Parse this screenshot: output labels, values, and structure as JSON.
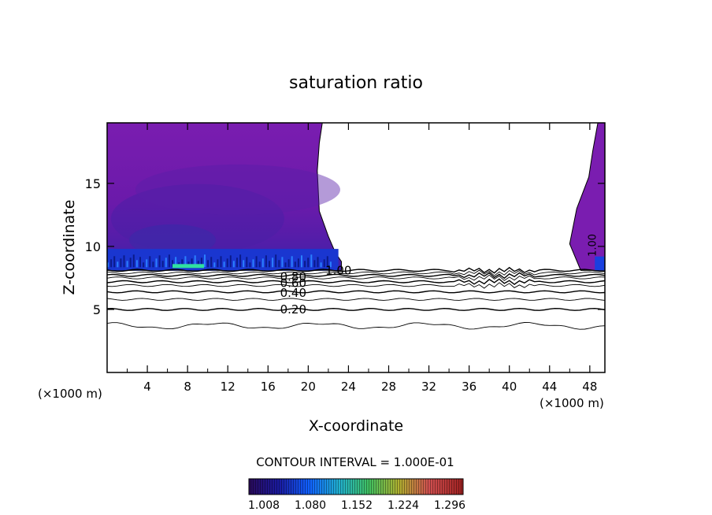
{
  "chart_data": {
    "type": "contour",
    "title": "saturation ratio",
    "xlabel": "X-coordinate",
    "ylabel": "Z-coordinate",
    "x_unit_left": "(×1000 m)",
    "x_unit_right": "(×1000 m)",
    "xlim": [
      0,
      49.5
    ],
    "ylim": [
      0,
      19.8
    ],
    "x_ticks": [
      4,
      8,
      12,
      16,
      20,
      24,
      28,
      32,
      36,
      40,
      44,
      48
    ],
    "y_ticks": [
      5,
      10,
      15
    ],
    "contour_interval_text": "CONTOUR INTERVAL = 1.000E-01",
    "contour_levels": [
      0.1,
      0.2,
      0.3,
      0.4,
      0.5,
      0.6,
      0.7,
      0.8,
      0.9,
      1.0
    ],
    "contour_line_heights": [
      {
        "level": 0.1,
        "z": 3.7
      },
      {
        "level": 0.2,
        "z": 5.0
      },
      {
        "level": 0.3,
        "z": 5.8
      },
      {
        "level": 0.4,
        "z": 6.4
      },
      {
        "level": 0.5,
        "z": 6.9
      },
      {
        "level": 0.6,
        "z": 7.2
      },
      {
        "level": 0.7,
        "z": 7.5
      },
      {
        "level": 0.8,
        "z": 7.7
      },
      {
        "level": 0.9,
        "z": 7.9
      },
      {
        "level": 1.0,
        "z": 8.1
      }
    ],
    "contour_labels": [
      {
        "text": "0.20",
        "x": 17.2,
        "z": 5.0
      },
      {
        "text": "0.40",
        "x": 17.2,
        "z": 6.3
      },
      {
        "text": "0.60",
        "x": 17.2,
        "z": 7.1
      },
      {
        "text": "0.80",
        "x": 17.2,
        "z": 7.6
      },
      {
        "text": "1.00",
        "x": 21.7,
        "z": 8.1
      },
      {
        "text": "1.00",
        "x": 48.6,
        "z": 9.5
      }
    ],
    "supersaturated_region_1": {
      "x_range": [
        0,
        23.3
      ],
      "z_range": [
        8.1,
        19.8
      ],
      "top_edge_x": 21.4
    },
    "supersaturated_region_2": {
      "x_range": [
        46.0,
        49.5
      ],
      "z_range": [
        8.1,
        19.8
      ],
      "top_edge_x": 48.8
    },
    "colorbar": {
      "tick_labels": [
        "1.008",
        "1.080",
        "1.152",
        "1.224",
        "1.296"
      ],
      "colors": [
        "#2a0a5a",
        "#1a1aa0",
        "#1060ff",
        "#20b0d0",
        "#40c060",
        "#b0b030",
        "#d05050",
        "#a02020"
      ]
    }
  }
}
